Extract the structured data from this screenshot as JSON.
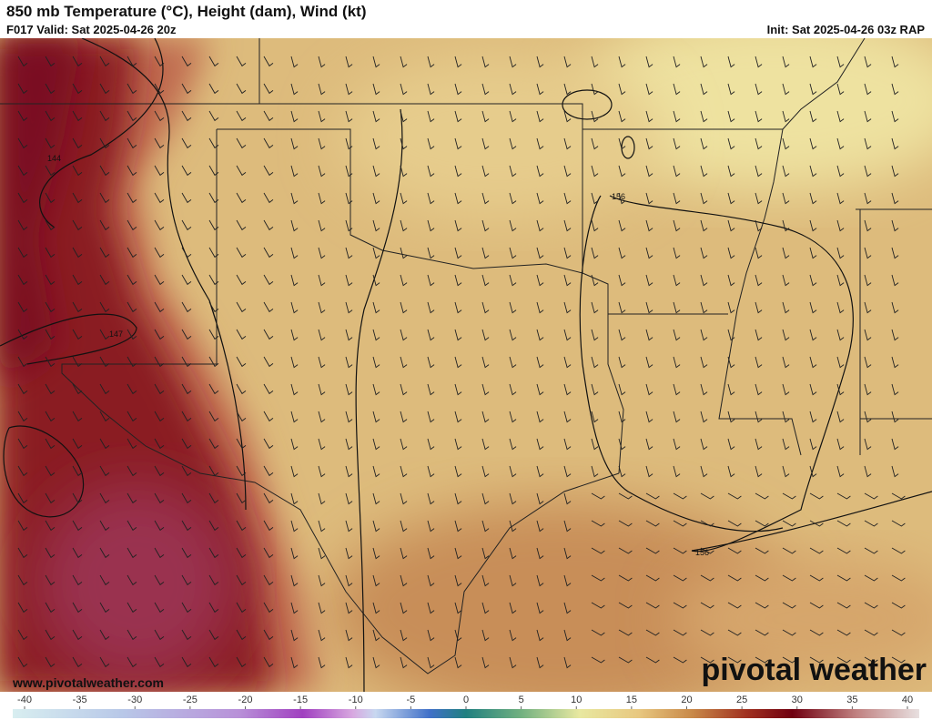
{
  "header": {
    "title": "850 mb Temperature (°C), Height (dam), Wind (kt)",
    "valid": "F017 Valid: Sat 2025-04-26 20z",
    "init": "Init: Sat 2025-04-26 03z RAP"
  },
  "contour_labels": [
    "144",
    "147",
    "156",
    "156"
  ],
  "footer": {
    "website": "www.pivotalweather.com",
    "brand": "pivotal weather"
  },
  "colorbar": {
    "range": [
      -40,
      40
    ],
    "ticks": [
      -40,
      -35,
      -30,
      -25,
      -20,
      -15,
      -10,
      -5,
      0,
      5,
      10,
      15,
      20,
      25,
      30,
      35,
      40
    ]
  }
}
